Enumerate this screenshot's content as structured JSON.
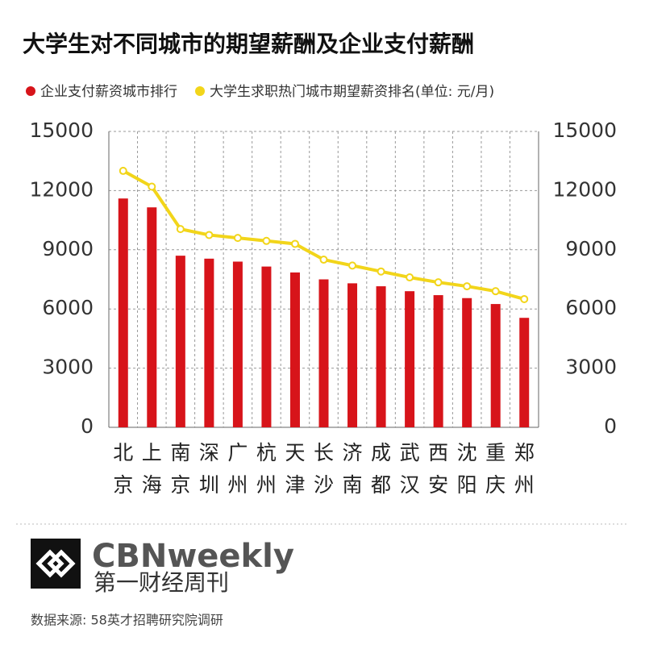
{
  "chart_data": {
    "type": "bar_line",
    "title": "大学生对不同城市的期望薪酬及企业支付薪酬",
    "categories": [
      "北京",
      "上海",
      "南京",
      "深圳",
      "广州",
      "杭州",
      "天津",
      "长沙",
      "济南",
      "成都",
      "武汉",
      "西安",
      "沈阳",
      "重庆",
      "郑州"
    ],
    "series": [
      {
        "name": "企业支付薪资城市排行",
        "type": "bar",
        "color": "#d7141a",
        "values": [
          11600,
          11150,
          8700,
          8550,
          8400,
          8150,
          7850,
          7500,
          7300,
          7150,
          6900,
          6700,
          6550,
          6250,
          5550
        ]
      },
      {
        "name": "大学生求职热门城市期望薪资排名(单位: 元/月)",
        "type": "line",
        "axis": "y2",
        "color": "#f2d51a",
        "values": [
          13000,
          12200,
          10050,
          9750,
          9600,
          9450,
          9300,
          8500,
          8200,
          7900,
          7600,
          7350,
          7150,
          6900,
          6500
        ]
      }
    ],
    "ylim": [
      0,
      15000
    ],
    "yticks": [
      0,
      3000,
      6000,
      9000,
      12000,
      15000
    ],
    "y2lim": [
      0,
      15000
    ],
    "y2ticks": [
      0,
      3000,
      6000,
      9000,
      12000,
      15000
    ],
    "grid": true
  },
  "footer": {
    "brand": "CBNweekly",
    "brand_cn": "第一财经周刊",
    "source": "数据来源: 58英才招聘研究院调研"
  }
}
